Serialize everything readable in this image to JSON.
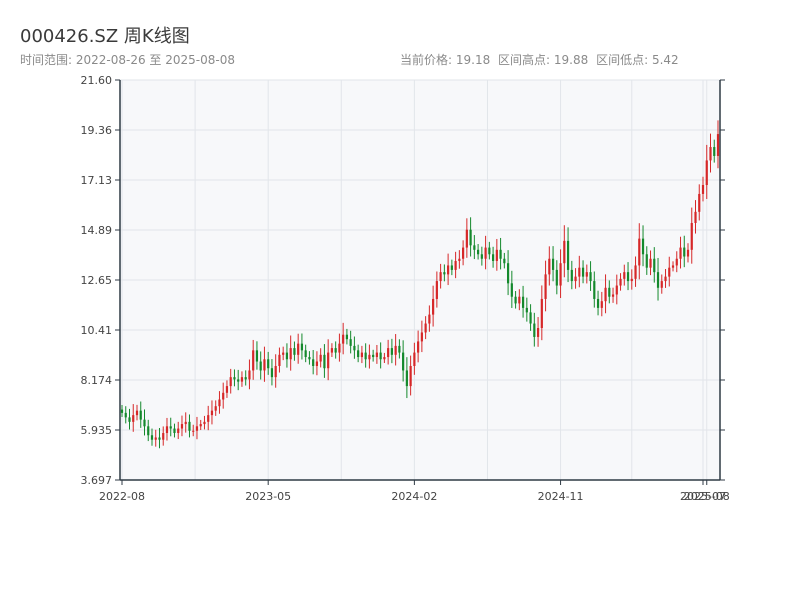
{
  "header": {
    "title": "000426.SZ 周K线图",
    "range_label": "时间范围: 2022-08-26 至 2025-08-08",
    "stats": {
      "current": "当前价格: 19.18",
      "high": "区间高点: 19.88",
      "low": "区间低点: 5.42"
    }
  },
  "colors": {
    "up": "#d62728",
    "down": "#14892c",
    "grid": "#e2e5ea",
    "plot_bg": "#f7f8fa",
    "axis": "#2f3a44"
  },
  "chart_data": {
    "type": "candlestick",
    "title": "000426.SZ 周K线图",
    "ylim": [
      3.697,
      21.6
    ],
    "yticks": [
      "3.697",
      "5.935",
      "8.174",
      "10.41",
      "12.65",
      "14.89",
      "17.13",
      "19.36",
      "21.60"
    ],
    "xticks": [
      "2022-08",
      "2023-05",
      "2024-02",
      "2024-11",
      "2025-07",
      "2025-08"
    ],
    "xtick_positions_weeks": [
      0,
      39,
      78,
      117,
      155,
      156
    ],
    "series": [
      {
        "name": "weekly_close",
        "values": [
          6.7,
          6.5,
          6.3,
          6.6,
          6.8,
          6.4,
          6.1,
          5.7,
          5.5,
          5.6,
          5.5,
          5.8,
          6.1,
          6.0,
          5.8,
          6.0,
          6.2,
          6.3,
          5.9,
          5.9,
          6.1,
          6.2,
          6.3,
          6.6,
          6.8,
          7.0,
          7.3,
          7.6,
          7.9,
          8.3,
          8.2,
          8.1,
          8.3,
          8.2,
          8.6,
          9.5,
          9.0,
          8.6,
          9.1,
          8.7,
          8.3,
          8.8,
          9.3,
          9.4,
          9.1,
          9.6,
          9.3,
          9.8,
          9.5,
          9.2,
          9.1,
          8.8,
          9.0,
          9.3,
          8.7,
          9.4,
          9.6,
          9.4,
          9.8,
          10.2,
          10.0,
          9.7,
          9.5,
          9.2,
          9.4,
          9.1,
          9.3,
          9.2,
          9.4,
          9.1,
          9.2,
          9.6,
          9.3,
          9.7,
          9.4,
          8.6,
          7.9,
          8.8,
          9.4,
          9.9,
          10.3,
          10.7,
          11.1,
          11.8,
          12.6,
          13.0,
          12.9,
          13.3,
          13.1,
          13.5,
          13.6,
          14.1,
          14.9,
          14.2,
          14.0,
          13.8,
          13.6,
          14.1,
          13.8,
          13.5,
          14.0,
          13.6,
          13.4,
          12.5,
          11.9,
          11.6,
          11.9,
          11.4,
          11.2,
          10.7,
          10.1,
          10.5,
          11.8,
          12.9,
          13.6,
          13.1,
          12.4,
          13.4,
          14.4,
          13.1,
          12.6,
          12.8,
          13.2,
          12.8,
          13.0,
          12.6,
          11.8,
          11.4,
          11.7,
          12.3,
          11.9,
          12.0,
          12.4,
          12.7,
          13.0,
          12.6,
          12.7,
          13.3,
          14.5,
          13.8,
          13.2,
          13.6,
          13.0,
          12.3,
          12.6,
          12.8,
          13.2,
          13.3,
          13.6,
          14.1,
          13.7,
          14.0,
          15.2,
          15.7,
          16.5,
          16.9,
          18.0,
          18.6,
          18.2,
          19.18
        ]
      }
    ]
  }
}
